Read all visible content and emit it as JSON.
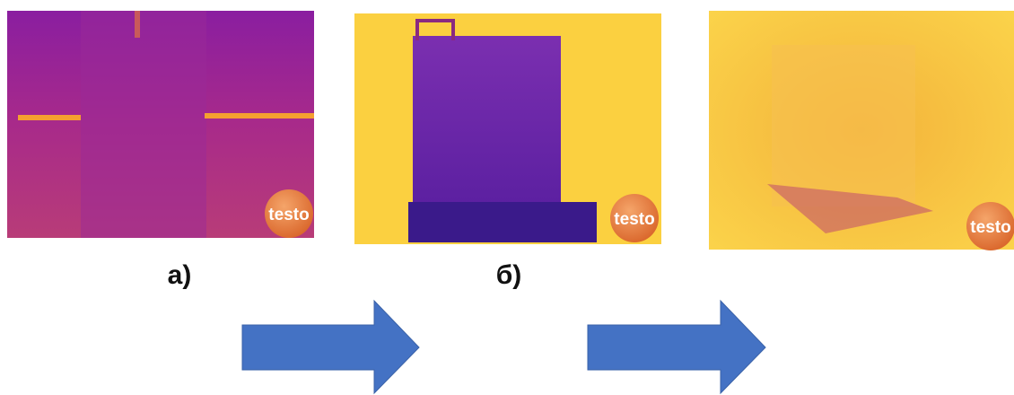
{
  "panels": [
    {
      "label": "а)",
      "logo": "testo"
    },
    {
      "label": "б)",
      "logo": "testo"
    },
    {
      "logo": "testo"
    }
  ]
}
